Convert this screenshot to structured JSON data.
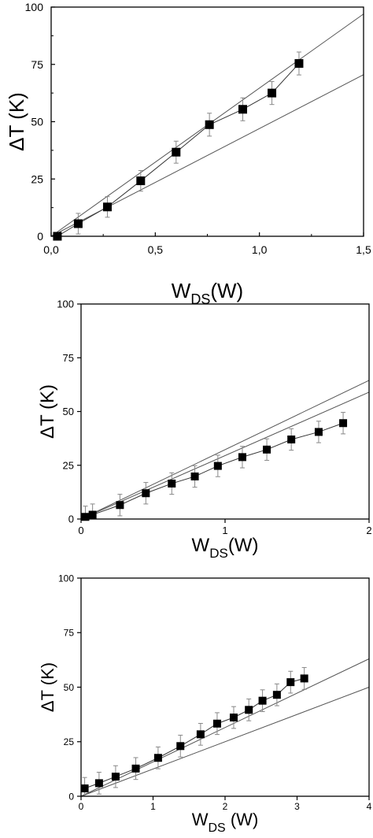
{
  "chart_data": [
    {
      "type": "scatter",
      "title": "",
      "xlabel": {
        "main": "W",
        "sub": "DS",
        "tail": "(W)"
      },
      "ylabel": "ΔT (K)",
      "xlim": [
        0,
        1.5
      ],
      "ylim": [
        0,
        100
      ],
      "x_ticks": [
        0,
        0.5,
        1.0,
        1.5
      ],
      "x_tick_labels": [
        "0,0",
        "0,5",
        "1,0",
        "1,5"
      ],
      "y_ticks": [
        0,
        25,
        50,
        75,
        100
      ],
      "y_tick_labels": [
        "0",
        "25",
        "50",
        "75",
        "100"
      ],
      "grid": false,
      "legend": "none",
      "series": [
        {
          "role": "measured",
          "marker": "square",
          "connected": true,
          "x": [
            0.03,
            0.13,
            0.27,
            0.43,
            0.6,
            0.76,
            0.92,
            1.06,
            1.19
          ],
          "y": [
            0,
            5.5,
            12.8,
            24.2,
            36.7,
            48.7,
            55.4,
            62.5,
            75.4
          ],
          "err": [
            0,
            4.5,
            4.5,
            4.5,
            4.8,
            5,
            5,
            5,
            5
          ]
        },
        {
          "role": "reference_line",
          "x": [
            0,
            1.5
          ],
          "y": [
            0,
            97
          ]
        },
        {
          "role": "reference_line",
          "x": [
            0,
            1.5
          ],
          "y": [
            0,
            70.5
          ]
        }
      ]
    },
    {
      "type": "scatter",
      "title": "",
      "xlabel": {
        "main": "W",
        "sub": "DS",
        "tail": "(W)"
      },
      "ylabel": "ΔT (K)",
      "xlim": [
        0,
        2
      ],
      "ylim": [
        0,
        100
      ],
      "x_ticks": [
        0,
        1,
        2
      ],
      "x_tick_labels": [
        "0",
        "1",
        "2"
      ],
      "y_ticks": [
        0,
        25,
        50,
        75,
        100
      ],
      "y_tick_labels": [
        "0",
        "25",
        "50",
        "75",
        "100"
      ],
      "grid": false,
      "legend": "none",
      "series": [
        {
          "role": "measured",
          "marker": "square",
          "connected": true,
          "x": [
            0.03,
            0.08,
            0.27,
            0.45,
            0.63,
            0.79,
            0.95,
            1.12,
            1.29,
            1.46,
            1.65,
            1.82
          ],
          "y": [
            1,
            2,
            6.5,
            12,
            16.5,
            19.8,
            24.7,
            28.8,
            32.3,
            37,
            40.5,
            44.6
          ],
          "err": [
            5,
            5,
            5,
            5,
            5,
            5,
            5,
            5,
            5,
            5,
            5,
            5
          ]
        },
        {
          "role": "reference_line",
          "x": [
            0,
            2
          ],
          "y": [
            0,
            64.5
          ]
        },
        {
          "role": "reference_line",
          "x": [
            0,
            2
          ],
          "y": [
            0,
            59
          ]
        }
      ]
    },
    {
      "type": "scatter",
      "title": "",
      "xlabel": {
        "main": "W",
        "sub": "DS",
        "tail": " (W)"
      },
      "ylabel": "ΔT (K)",
      "xlim": [
        0,
        4
      ],
      "ylim": [
        0,
        100
      ],
      "x_ticks": [
        0,
        1,
        2,
        3,
        4
      ],
      "x_tick_labels": [
        "0",
        "1",
        "2",
        "3",
        "4"
      ],
      "y_ticks": [
        0,
        25,
        50,
        75,
        100
      ],
      "y_tick_labels": [
        "0",
        "25",
        "50",
        "75",
        "100"
      ],
      "grid": false,
      "legend": "none",
      "series": [
        {
          "role": "measured",
          "marker": "square",
          "connected": true,
          "x": [
            0.05,
            0.25,
            0.48,
            0.76,
            1.07,
            1.38,
            1.66,
            1.89,
            2.12,
            2.33,
            2.52,
            2.72,
            2.91,
            3.1
          ],
          "y": [
            3.6,
            6,
            9,
            12.7,
            17.6,
            23,
            28.4,
            33.3,
            36.1,
            39.6,
            43.8,
            46.5,
            52.3,
            54
          ],
          "err": [
            5,
            5,
            5,
            5,
            5,
            5,
            5,
            5,
            5,
            5,
            5,
            5,
            5,
            5
          ]
        },
        {
          "role": "reference_line",
          "x": [
            0,
            4
          ],
          "y": [
            0,
            63
          ]
        },
        {
          "role": "reference_line",
          "x": [
            0,
            4
          ],
          "y": [
            0,
            50
          ]
        }
      ]
    }
  ]
}
